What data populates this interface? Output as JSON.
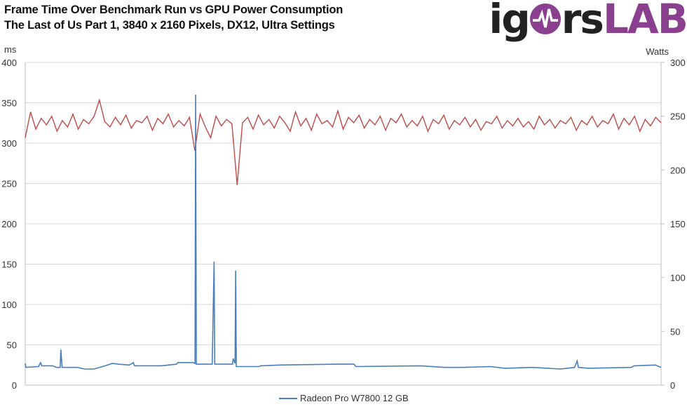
{
  "logo_text": "igorsLAB",
  "logo_parts": {
    "a": "ig",
    "b": "rs",
    "c": "LAB"
  },
  "chart_data": {
    "type": "line",
    "title": "Frame Time Over Benchmark Run vs GPU Power Consumption",
    "subtitle": "The Last of Us Part 1, 3840 x 2160 Pixels, DX12, Ultra Settings",
    "ylabel": "ms",
    "y2label": "Watts",
    "ylim": [
      0,
      400
    ],
    "y2lim": [
      0,
      300
    ],
    "yticks": [
      "0",
      "50",
      "100",
      "150",
      "200",
      "250",
      "300",
      "350",
      "400"
    ],
    "y2ticks": [
      "0",
      "50",
      "100",
      "150",
      "200",
      "250",
      "300"
    ],
    "xlim": [
      0,
      100
    ],
    "grid": true,
    "legend_position": "bottom",
    "colors": {
      "frametime": "#4a7ebb",
      "power": "#be4b48",
      "grid": "#d9d9d9"
    },
    "series": [
      {
        "name": "Radeon Pro W7800 12 GB",
        "axis": "left",
        "in_legend": true,
        "points": [
          [
            0,
            27
          ],
          [
            0.1,
            22
          ],
          [
            2.1,
            23
          ],
          [
            2.4,
            28
          ],
          [
            2.6,
            24
          ],
          [
            4.3,
            24
          ],
          [
            4.9,
            22
          ],
          [
            5.5,
            22
          ],
          [
            5.6,
            44
          ],
          [
            5.8,
            22
          ],
          [
            8.2,
            22
          ],
          [
            9.3,
            20
          ],
          [
            10.8,
            20
          ],
          [
            12.6,
            24
          ],
          [
            13.7,
            27
          ],
          [
            14.6,
            26
          ],
          [
            16.4,
            25
          ],
          [
            17.0,
            28
          ],
          [
            17.2,
            24
          ],
          [
            21.4,
            24
          ],
          [
            23.8,
            26
          ],
          [
            24.0,
            28
          ],
          [
            26.4,
            28
          ],
          [
            26.7,
            27
          ],
          [
            26.8,
            360
          ],
          [
            26.9,
            26
          ],
          [
            29.4,
            26
          ],
          [
            29.7,
            153
          ],
          [
            29.8,
            26
          ],
          [
            32.6,
            26
          ],
          [
            32.7,
            33
          ],
          [
            33.0,
            27
          ],
          [
            33.1,
            142
          ],
          [
            33.2,
            23
          ],
          [
            36.8,
            23
          ],
          [
            37.0,
            24
          ],
          [
            40.1,
            25
          ],
          [
            49.0,
            26
          ],
          [
            51.7,
            26
          ],
          [
            52.0,
            23
          ],
          [
            62.2,
            24
          ],
          [
            66.0,
            22
          ],
          [
            68.8,
            22
          ],
          [
            73.2,
            23
          ],
          [
            75.4,
            21
          ],
          [
            79.8,
            22
          ],
          [
            84.2,
            20
          ],
          [
            86.4,
            22
          ],
          [
            86.8,
            30
          ],
          [
            87.0,
            22
          ],
          [
            88.6,
            21
          ],
          [
            95.3,
            22
          ],
          [
            95.8,
            24
          ],
          [
            99.1,
            25
          ],
          [
            100,
            22
          ]
        ]
      },
      {
        "name": "GPU Power",
        "axis": "right",
        "in_legend": false,
        "values": [
          230,
          254,
          238,
          248,
          242,
          250,
          236,
          246,
          240,
          252,
          238,
          247,
          243,
          250,
          265,
          245,
          240,
          249,
          242,
          251,
          239,
          246,
          244,
          250,
          237,
          248,
          243,
          252,
          240,
          246,
          241,
          249,
          218,
          252,
          240,
          230,
          250,
          241,
          247,
          243,
          186,
          244,
          249,
          238,
          251,
          242,
          247,
          239,
          250,
          244,
          236,
          254,
          241,
          248,
          237,
          252,
          243,
          246,
          240,
          255,
          238,
          249,
          244,
          251,
          239,
          247,
          242,
          250,
          237,
          248,
          244,
          252,
          240,
          246,
          241,
          250,
          236,
          247,
          243,
          251,
          238,
          246,
          242,
          249,
          240,
          247,
          237,
          245,
          243,
          250,
          239,
          246,
          241,
          248,
          240,
          245,
          238,
          250,
          242,
          247,
          239,
          246,
          243,
          249,
          237,
          246,
          242,
          250,
          240,
          246,
          243,
          252,
          238,
          248,
          242,
          250,
          236,
          247,
          241,
          249,
          244
        ]
      }
    ]
  }
}
